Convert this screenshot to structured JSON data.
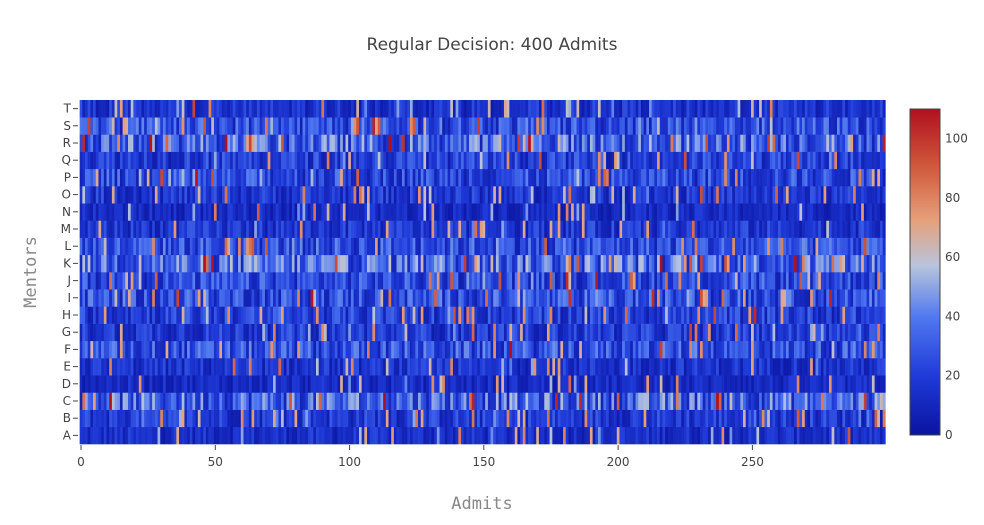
{
  "chart_data": {
    "type": "heatmap",
    "title": "Regular Decision: 400 Admits",
    "xlabel": "Admits",
    "ylabel": "Mentors",
    "x_range": [
      0,
      299
    ],
    "x_ticks": [
      0,
      50,
      100,
      150,
      200,
      250
    ],
    "y_categories": [
      "A",
      "B",
      "C",
      "D",
      "E",
      "F",
      "G",
      "H",
      "I",
      "J",
      "K",
      "L",
      "M",
      "N",
      "O",
      "P",
      "Q",
      "R",
      "S",
      "T"
    ],
    "zmin": 0,
    "zmax": 110,
    "colorbar_ticks": [
      0,
      20,
      40,
      60,
      80,
      100
    ],
    "colorscale": [
      [
        0.0,
        "#0a14a0"
      ],
      [
        0.18,
        "#1f3ad8"
      ],
      [
        0.36,
        "#4f78f0"
      ],
      [
        0.52,
        "#b8c4dc"
      ],
      [
        0.66,
        "#e6a07a"
      ],
      [
        0.82,
        "#d05a3c"
      ],
      [
        1.0,
        "#b0101e"
      ]
    ],
    "row_profile": {
      "A": 16,
      "B": 22,
      "C": 38,
      "D": 14,
      "E": 18,
      "F": 30,
      "G": 22,
      "H": 24,
      "I": 30,
      "J": 28,
      "K": 40,
      "L": 30,
      "M": 20,
      "N": 14,
      "O": 20,
      "P": 28,
      "Q": 24,
      "R": 38,
      "S": 30,
      "T": 18
    },
    "cell_values_note": ""
  }
}
